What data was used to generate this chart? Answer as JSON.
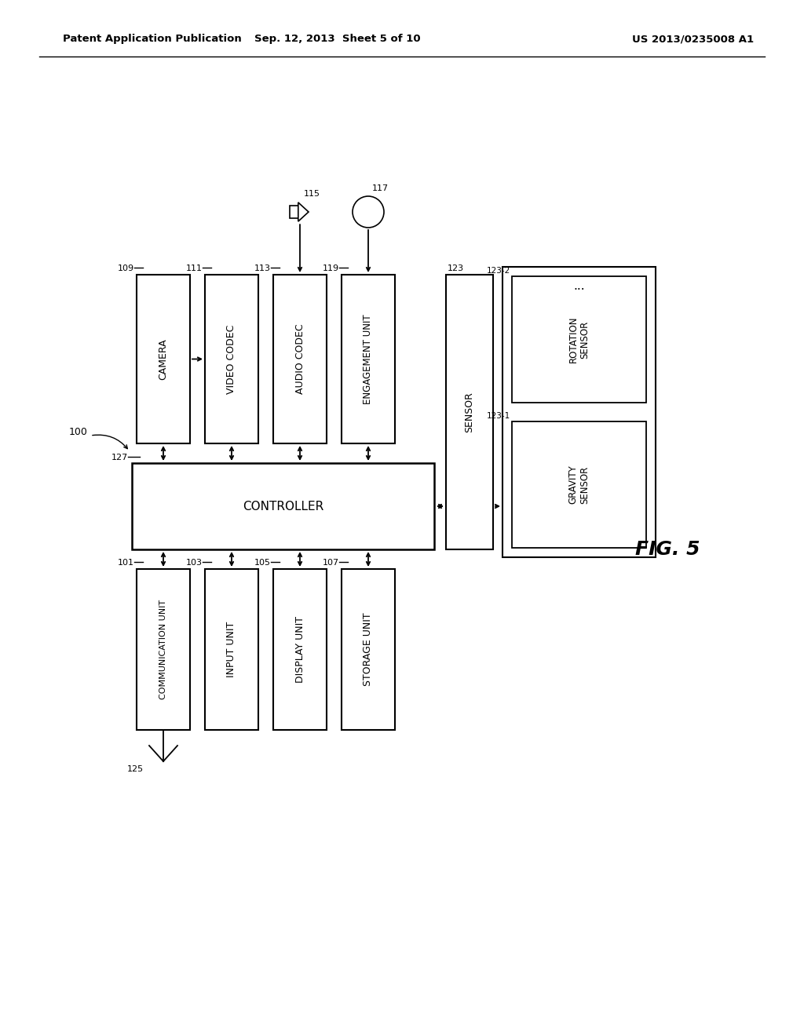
{
  "bg_color": "#ffffff",
  "header_left": "Patent Application Publication",
  "header_mid": "Sep. 12, 2013  Sheet 5 of 10",
  "header_right": "US 2013/0235008 A1",
  "fig_label": "FIG. 5"
}
